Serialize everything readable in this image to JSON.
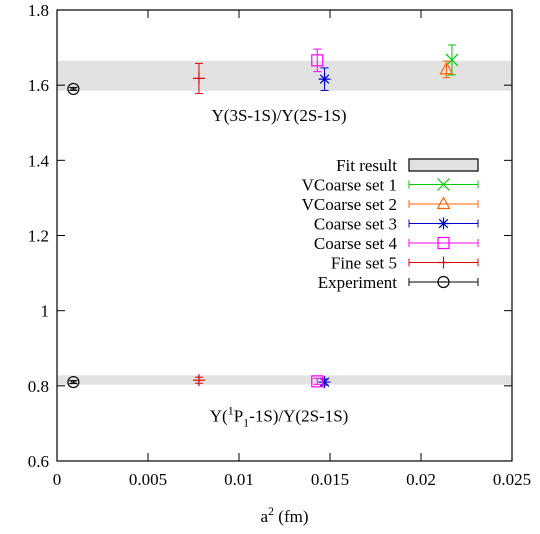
{
  "chart_data": {
    "type": "scatter",
    "title": "",
    "xlabel": "a",
    "xlabel_sup": "2",
    "xlabel_unit": " (fm)",
    "ylabel": "",
    "xlim": [
      0,
      0.025
    ],
    "ylim": [
      0.6,
      1.8
    ],
    "x_ticks": [
      0,
      0.005,
      0.01,
      0.015,
      0.02,
      0.025
    ],
    "x_tick_labels": [
      "0",
      "0.005",
      "0.01",
      "0.015",
      "0.02",
      "0.025"
    ],
    "y_ticks": [
      0.6,
      0.8,
      1.0,
      1.2,
      1.4,
      1.6,
      1.8
    ],
    "y_tick_labels": [
      "0.6",
      "0.8",
      "1",
      "1.2",
      "1.4",
      "1.6",
      "1.8"
    ],
    "grid": false,
    "legend_position": "right",
    "annotations": [
      {
        "name": "ratio-3s",
        "parts": [
          {
            "t": "Υ(3S-1S)/Υ(2S-1S)"
          }
        ],
        "x": 0.0122,
        "y": 1.505
      },
      {
        "name": "ratio-1p",
        "parts": [
          {
            "t": "Υ("
          },
          {
            "t": "1",
            "sup": true
          },
          {
            "t": "P"
          },
          {
            "t": "1",
            "sub": true
          },
          {
            "t": "-1S)/Υ(2S-1S)"
          }
        ],
        "x": 0.0122,
        "y": 0.705
      }
    ],
    "fit_bands": [
      {
        "name": "Fit result",
        "y_low": 1.585,
        "y_high": 1.665
      },
      {
        "name": "Fit result",
        "y_low": 0.803,
        "y_high": 0.828
      }
    ],
    "series": [
      {
        "name": "VCoarse set 1",
        "marker": "x",
        "color": "#00cc00",
        "points": [
          {
            "x": 0.0217,
            "y": 1.667,
            "yerr": 0.04
          }
        ]
      },
      {
        "name": "VCoarse set 2",
        "marker": "triangle",
        "color": "#ff6600",
        "points": [
          {
            "x": 0.0214,
            "y": 1.642,
            "yerr": 0.022
          }
        ]
      },
      {
        "name": "Coarse set 3",
        "marker": "star",
        "color": "#0000cc",
        "points": [
          {
            "x": 0.0147,
            "y": 1.616,
            "yerr": 0.03
          },
          {
            "x": 0.0147,
            "y": 0.81,
            "yerr": 0.008
          }
        ]
      },
      {
        "name": "Coarse set 4",
        "marker": "square",
        "color": "#ff00ff",
        "points": [
          {
            "x": 0.0143,
            "y": 1.666,
            "yerr": 0.03
          },
          {
            "x": 0.0143,
            "y": 0.812,
            "yerr": 0.008
          }
        ]
      },
      {
        "name": "Fine set 5",
        "marker": "plus",
        "color": "#dd0000",
        "points": [
          {
            "x": 0.0078,
            "y": 1.618,
            "yerr": 0.04
          },
          {
            "x": 0.0078,
            "y": 0.815,
            "yerr": 0.008
          }
        ]
      },
      {
        "name": "Experiment",
        "marker": "circle",
        "color": "#000000",
        "points": [
          {
            "x": 0.0009,
            "y": 1.59,
            "yerr": 0.004
          },
          {
            "x": 0.0009,
            "y": 0.81,
            "yerr": 0.004
          }
        ]
      }
    ]
  }
}
